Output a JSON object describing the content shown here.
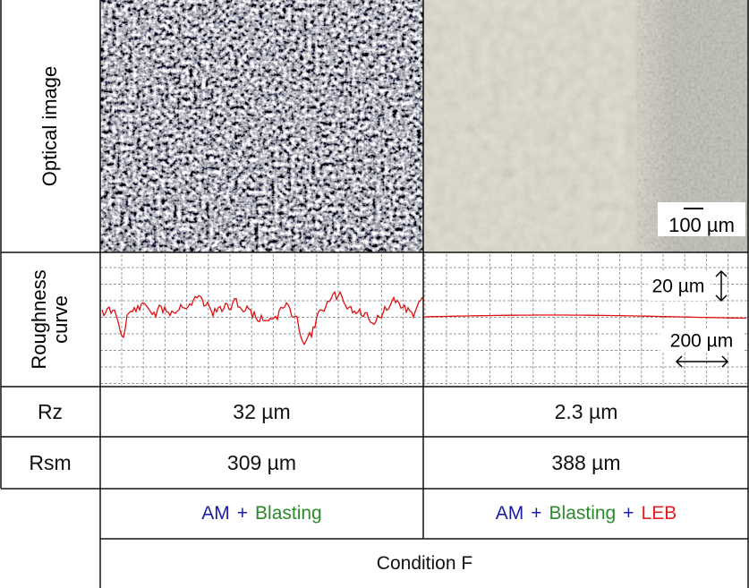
{
  "row_labels": [
    "Optical image",
    "Roughness curve",
    "Rz",
    "Rsm"
  ],
  "scale_bars": {
    "image": "100 µm",
    "vertical": "20 µm",
    "horizontal": "200 µm"
  },
  "table": {
    "rows": [
      [
        "32 µm",
        "2.3 µm"
      ],
      [
        "309 µm",
        "388 µm"
      ]
    ]
  },
  "conditions": [
    [
      {
        "text": "AM",
        "color": "#1c1ca8"
      },
      {
        "text": "+",
        "color": "#1c1ca8"
      },
      {
        "text": "Blasting",
        "color": "#2a8a2a"
      }
    ],
    [
      {
        "text": "AM",
        "color": "#1c1ca8"
      },
      {
        "text": "+",
        "color": "#1c1ca8"
      },
      {
        "text": "Blasting",
        "color": "#2a8a2a"
      },
      {
        "text": "+",
        "color": "#1c1ca8"
      },
      {
        "text": "LEB",
        "color": "#e02020"
      }
    ]
  ],
  "condition_title": "Condition F"
}
